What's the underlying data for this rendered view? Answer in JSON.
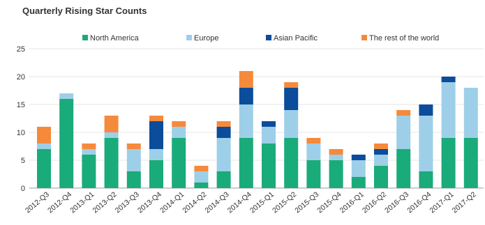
{
  "chart_data": {
    "type": "bar",
    "stacked": true,
    "title": "Quarterly Rising Star Counts",
    "xlabel": "",
    "ylabel": "",
    "ylim": [
      0,
      25
    ],
    "yticks": [
      0,
      5,
      10,
      15,
      20,
      25
    ],
    "grid": true,
    "legend_position": "top",
    "categories": [
      "2012-Q3",
      "2012-Q4",
      "2013-Q1",
      "2013-Q2",
      "2013-Q3",
      "2013-Q4",
      "2014-Q1",
      "2014-Q2",
      "2014-Q3",
      "2014-Q4",
      "2015-Q1",
      "2015-Q2",
      "2015-Q3",
      "2015-Q4",
      "2016-Q1",
      "2016-Q2",
      "2016-Q3",
      "2016-Q4",
      "2017-Q1",
      "2017-Q2"
    ],
    "series": [
      {
        "name": "North America",
        "color": "#1aab7a",
        "values": [
          7,
          16,
          6,
          9,
          3,
          5,
          9,
          1,
          3,
          9,
          8,
          9,
          5,
          5,
          2,
          4,
          7,
          3,
          9,
          9
        ]
      },
      {
        "name": "Europe",
        "color": "#9ecfe8",
        "values": [
          1,
          1,
          1,
          1,
          4,
          2,
          2,
          2,
          6,
          6,
          3,
          5,
          3,
          1,
          3,
          2,
          6,
          10,
          10,
          9
        ]
      },
      {
        "name": "Asian Pacific",
        "color": "#0b4c9b",
        "values": [
          0,
          0,
          0,
          0,
          0,
          5,
          0,
          0,
          2,
          3,
          1,
          4,
          0,
          0,
          1,
          1,
          0,
          2,
          1,
          0
        ]
      },
      {
        "name": "The rest of the world",
        "color": "#f58a3c",
        "values": [
          3,
          0,
          1,
          3,
          1,
          1,
          1,
          1,
          1,
          3,
          0,
          1,
          1,
          1,
          0,
          1,
          1,
          0,
          0,
          0
        ]
      }
    ]
  }
}
